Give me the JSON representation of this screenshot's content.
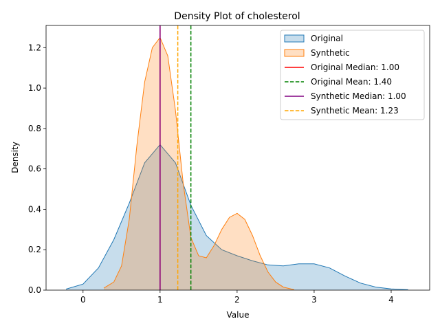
{
  "chart_data": {
    "type": "area",
    "title": "Density Plot of cholesterol",
    "xlabel": "Value",
    "ylabel": "Density",
    "xlim": [
      -0.48,
      4.5
    ],
    "ylim": [
      0,
      1.31
    ],
    "xticks": [
      0,
      1,
      2,
      3,
      4
    ],
    "yticks": [
      0.0,
      0.2,
      0.4,
      0.6,
      0.8,
      1.0,
      1.2
    ],
    "xtick_labels": [
      "0",
      "1",
      "2",
      "3",
      "4"
    ],
    "ytick_labels": [
      "0.0",
      "0.2",
      "0.4",
      "0.6",
      "0.8",
      "1.0",
      "1.2"
    ],
    "grid": false,
    "legend_position": "top-right",
    "series": [
      {
        "name": "Original",
        "color": "#1f77b4",
        "fill_opacity": 0.25,
        "x": [
          -0.22,
          0.0,
          0.2,
          0.4,
          0.6,
          0.8,
          1.0,
          1.2,
          1.4,
          1.6,
          1.8,
          2.0,
          2.2,
          2.4,
          2.6,
          2.8,
          3.0,
          3.2,
          3.4,
          3.6,
          3.8,
          4.0,
          4.22
        ],
        "y": [
          0.005,
          0.03,
          0.11,
          0.25,
          0.43,
          0.63,
          0.72,
          0.63,
          0.42,
          0.27,
          0.2,
          0.17,
          0.145,
          0.125,
          0.12,
          0.13,
          0.13,
          0.11,
          0.07,
          0.035,
          0.015,
          0.006,
          0.002
        ]
      },
      {
        "name": "Synthetic",
        "color": "#ff7f0e",
        "fill_opacity": 0.25,
        "x": [
          0.27,
          0.4,
          0.5,
          0.6,
          0.7,
          0.8,
          0.9,
          1.0,
          1.1,
          1.2,
          1.3,
          1.4,
          1.5,
          1.6,
          1.7,
          1.8,
          1.9,
          2.0,
          2.1,
          2.2,
          2.3,
          2.4,
          2.5,
          2.6,
          2.74
        ],
        "y": [
          0.01,
          0.04,
          0.12,
          0.35,
          0.72,
          1.03,
          1.2,
          1.25,
          1.16,
          0.89,
          0.53,
          0.26,
          0.17,
          0.16,
          0.22,
          0.3,
          0.36,
          0.38,
          0.35,
          0.27,
          0.17,
          0.09,
          0.04,
          0.015,
          0.002
        ]
      }
    ],
    "reference_lines": [
      {
        "name": "Original Median: 1.00",
        "x": 1.0,
        "color": "#ff0000",
        "style": "solid"
      },
      {
        "name": "Original Mean: 1.40",
        "x": 1.4,
        "color": "#008000",
        "style": "dashed"
      },
      {
        "name": "Synthetic Median: 1.00",
        "x": 1.0,
        "color": "#800080",
        "style": "solid"
      },
      {
        "name": "Synthetic Mean: 1.23",
        "x": 1.23,
        "color": "#ffa500",
        "style": "dashed"
      }
    ]
  }
}
